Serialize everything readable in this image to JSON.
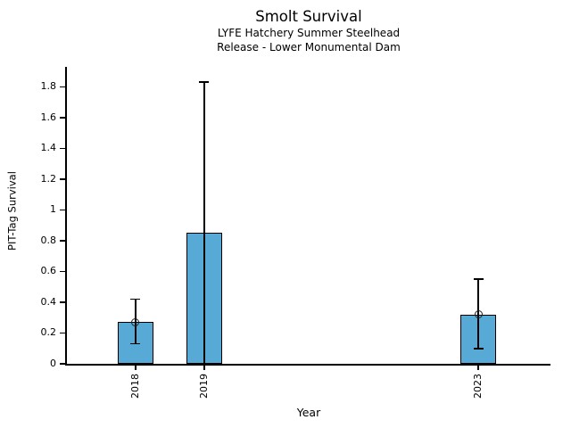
{
  "chart_data": {
    "type": "bar",
    "title": "Smolt Survival",
    "subtitle": [
      "LYFE Hatchery Summer Steelhead",
      "Release - Lower Monumental Dam"
    ],
    "xlabel": "Year",
    "ylabel": "PIT-Tag Survival",
    "categories": [
      "2018",
      "2019",
      "2023"
    ],
    "series": [
      {
        "points": [
          {
            "year": 2018,
            "label": "2018",
            "value": 0.27,
            "ci_low": 0.13,
            "ci_high": 0.42,
            "marker": true
          },
          {
            "year": 2019,
            "label": "2019",
            "value": 0.85,
            "ci_low": 0.0,
            "ci_high": 1.83,
            "marker": false,
            "ci_low_clipped": true
          },
          {
            "year": 2023,
            "label": "2023",
            "value": 0.32,
            "ci_low": 0.1,
            "ci_high": 0.55,
            "marker": true
          }
        ]
      }
    ],
    "yticks": [
      0,
      0.2,
      0.4,
      0.6,
      0.8,
      1.0,
      1.2,
      1.4,
      1.6,
      1.8
    ],
    "ytick_labels": [
      "0",
      "0.2",
      "0.4",
      "0.6",
      "0.8",
      "1",
      "1.2",
      "1.4",
      "1.6",
      "1.8"
    ],
    "xlim": [
      2017.0,
      2024.05
    ],
    "ylim": [
      0,
      1.93
    ],
    "bar_width_years": 0.52,
    "grid": false,
    "colors": {
      "bar_fill": "#57A9D6",
      "bar_edge": "#000000",
      "error_bar": "#000000",
      "marker_edge": "#222222",
      "text": "#000000"
    }
  }
}
